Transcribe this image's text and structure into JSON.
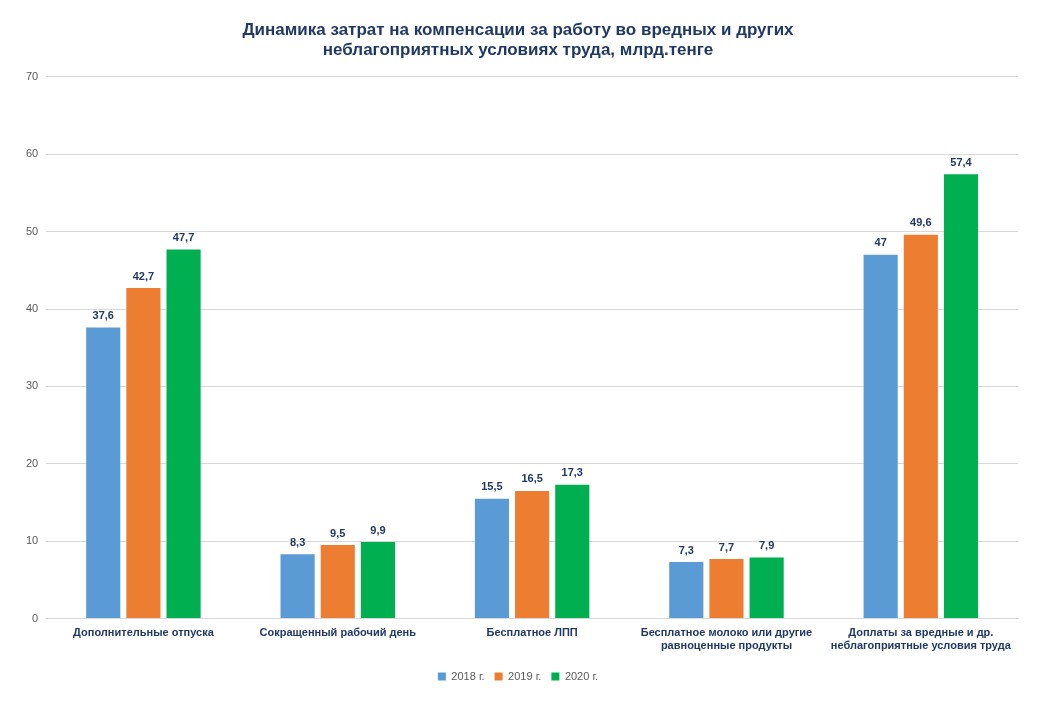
{
  "chart_data": {
    "type": "bar",
    "title": "Динамика затрат на компенсации за работу во вредных и других неблагоприятных условиях труда, млрд.тенге",
    "categories": [
      "Дополнительные отпуска",
      "Сокращенный рабочий день",
      "Бесплатное ЛПП",
      "Бесплатное молоко или другие равноценные продукты",
      "Доплаты за вредные и др. неблагоприятные условия труда"
    ],
    "series": [
      {
        "name": "2018 г.",
        "color": "#5b9bd5",
        "values": [
          37.6,
          8.3,
          15.5,
          7.3,
          47
        ],
        "value_labels": [
          "37,6",
          "8,3",
          "15,5",
          "7,3",
          "47"
        ]
      },
      {
        "name": "2019 г.",
        "color": "#ed7d31",
        "values": [
          42.7,
          9.5,
          16.5,
          7.7,
          49.6
        ],
        "value_labels": [
          "42,7",
          "9,5",
          "16,5",
          "7,7",
          "49,6"
        ]
      },
      {
        "name": "2020 г.",
        "color": "#00b050",
        "values": [
          47.7,
          9.9,
          17.3,
          7.9,
          57.4
        ],
        "value_labels": [
          "47,7",
          "9,9",
          "17,3",
          "7,9",
          "57,4"
        ]
      }
    ],
    "ylim": [
      0,
      70
    ],
    "yticks": [
      0,
      10,
      20,
      30,
      40,
      50,
      60,
      70
    ],
    "grid": "y",
    "legend": "bottom"
  }
}
